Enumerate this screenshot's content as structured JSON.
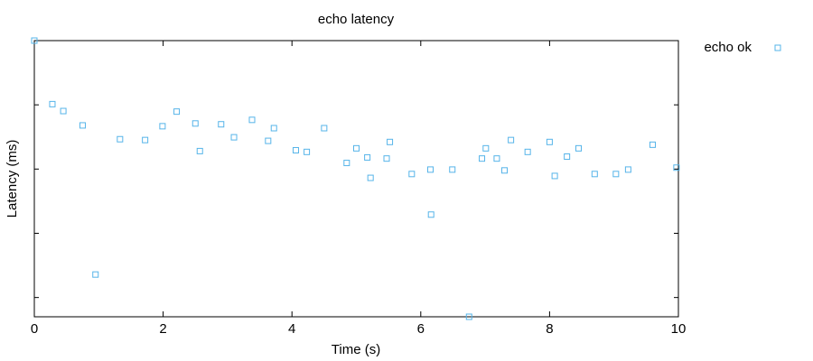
{
  "chart_data": {
    "type": "scatter",
    "title": "echo latency",
    "xlabel": "Time (s)",
    "ylabel": "Latency (ms)",
    "xlim": [
      0,
      10
    ],
    "ylim": [
      0,
      1
    ],
    "x_ticks": [
      0,
      2,
      4,
      6,
      8,
      10
    ],
    "y_ticks_labeled": false,
    "grid": false,
    "legend": "top-right-outside",
    "series": [
      {
        "name": "echo ok",
        "color": "#56b4e9",
        "marker": "open-square",
        "x": [
          0.0,
          0.28,
          0.45,
          0.75,
          0.95,
          1.33,
          1.72,
          1.99,
          2.21,
          2.5,
          2.57,
          2.9,
          3.1,
          3.38,
          3.63,
          3.72,
          4.06,
          4.23,
          4.5,
          4.85,
          5.0,
          5.17,
          5.22,
          5.47,
          5.52,
          5.86,
          6.15,
          6.16,
          6.49,
          6.75,
          6.95,
          7.01,
          7.18,
          7.3,
          7.4,
          7.66,
          8.0,
          8.08,
          8.27,
          8.45,
          8.7,
          9.03,
          9.22,
          9.6,
          9.97
        ],
        "y": [
          1.0,
          0.77,
          0.745,
          0.693,
          0.153,
          0.643,
          0.64,
          0.69,
          0.743,
          0.7,
          0.6,
          0.697,
          0.65,
          0.713,
          0.637,
          0.683,
          0.603,
          0.597,
          0.683,
          0.557,
          0.61,
          0.577,
          0.503,
          0.573,
          0.633,
          0.517,
          0.533,
          0.37,
          0.533,
          0.0,
          0.573,
          0.61,
          0.573,
          0.53,
          0.64,
          0.597,
          0.633,
          0.51,
          0.58,
          0.61,
          0.517,
          0.517,
          0.533,
          0.623,
          0.54
        ]
      }
    ]
  }
}
